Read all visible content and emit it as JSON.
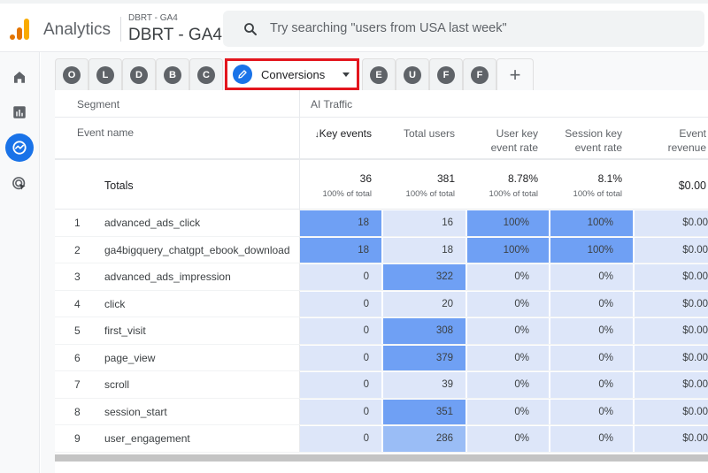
{
  "header": {
    "app_name": "Analytics",
    "property_sub": "DBRT - GA4",
    "property_name": "DBRT - GA4",
    "search_placeholder": "Try searching \"users from USA last week\"",
    "logo_colors": [
      "#e37400",
      "#f9ab00"
    ]
  },
  "rail": {
    "items": [
      {
        "icon": "home-icon",
        "active": false
      },
      {
        "icon": "reports-icon",
        "active": false
      },
      {
        "icon": "explore-icon",
        "active": true
      },
      {
        "icon": "advertising-icon",
        "active": false
      }
    ],
    "accent": "#1a73e8"
  },
  "tabs": {
    "left": [
      "O",
      "L",
      "D",
      "B",
      "C"
    ],
    "active": {
      "label": "Conversions",
      "icon": "pencil-icon",
      "highlight": "#e3161e"
    },
    "right": [
      "E",
      "U",
      "F",
      "F"
    ],
    "add_label": "+"
  },
  "table": {
    "segment_label": "Segment",
    "segment_value": "AI Traffic",
    "dimension_header": "Event name",
    "columns": [
      {
        "line1": "Key events",
        "line2": "",
        "sorted": true,
        "sort_icon": "↓"
      },
      {
        "line1": "Total users",
        "line2": ""
      },
      {
        "line1": "User key",
        "line2": "event rate"
      },
      {
        "line1": "Session key",
        "line2": "event rate"
      },
      {
        "line1": "Event",
        "line2": "revenue"
      }
    ],
    "totals": {
      "label": "Totals",
      "values": [
        "36",
        "381",
        "8.78%",
        "8.1%",
        "$0.00"
      ],
      "subs": [
        "100% of total",
        "100% of total",
        "100% of total",
        "100% of total",
        ""
      ]
    },
    "rows": [
      {
        "n": "1",
        "name": "advanced_ads_click",
        "key_events": "18",
        "total_users": "16",
        "user_rate": "100%",
        "session_rate": "100%",
        "revenue": "$0.00"
      },
      {
        "n": "2",
        "name": "ga4bigquery_chatgpt_ebook_download",
        "key_events": "18",
        "total_users": "18",
        "user_rate": "100%",
        "session_rate": "100%",
        "revenue": "$0.00"
      },
      {
        "n": "3",
        "name": "advanced_ads_impression",
        "key_events": "0",
        "total_users": "322",
        "user_rate": "0%",
        "session_rate": "0%",
        "revenue": "$0.00"
      },
      {
        "n": "4",
        "name": "click",
        "key_events": "0",
        "total_users": "20",
        "user_rate": "0%",
        "session_rate": "0%",
        "revenue": "$0.00"
      },
      {
        "n": "5",
        "name": "first_visit",
        "key_events": "0",
        "total_users": "308",
        "user_rate": "0%",
        "session_rate": "0%",
        "revenue": "$0.00"
      },
      {
        "n": "6",
        "name": "page_view",
        "key_events": "0",
        "total_users": "379",
        "user_rate": "0%",
        "session_rate": "0%",
        "revenue": "$0.00"
      },
      {
        "n": "7",
        "name": "scroll",
        "key_events": "0",
        "total_users": "39",
        "user_rate": "0%",
        "session_rate": "0%",
        "revenue": "$0.00"
      },
      {
        "n": "8",
        "name": "session_start",
        "key_events": "0",
        "total_users": "351",
        "user_rate": "0%",
        "session_rate": "0%",
        "revenue": "$0.00"
      },
      {
        "n": "9",
        "name": "user_engagement",
        "key_events": "0",
        "total_users": "286",
        "user_rate": "0%",
        "session_rate": "0%",
        "revenue": "$0.00"
      }
    ],
    "heat_colors": {
      "high": "#6fa0f4",
      "mid": "#9abdf6",
      "low": "#dde6f9"
    }
  }
}
